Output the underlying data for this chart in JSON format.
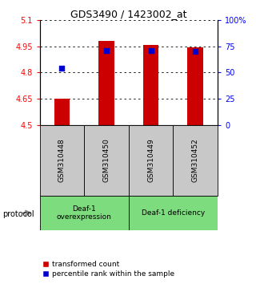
{
  "title": "GDS3490 / 1423002_at",
  "categories": [
    "GSM310448",
    "GSM310450",
    "GSM310449",
    "GSM310452"
  ],
  "bar_bottom": 4.5,
  "bar_tops": [
    4.648,
    4.982,
    4.955,
    4.942
  ],
  "blue_marker_values": [
    4.825,
    4.925,
    4.925,
    4.922
  ],
  "ylim_left": [
    4.5,
    5.1
  ],
  "ylim_right": [
    0,
    100
  ],
  "yticks_left": [
    4.5,
    4.65,
    4.8,
    4.95,
    5.1
  ],
  "yticks_right": [
    0,
    25,
    50,
    75,
    100
  ],
  "ytick_labels_left": [
    "4.5",
    "4.65",
    "4.8",
    "4.95",
    "5.1"
  ],
  "ytick_labels_right": [
    "0",
    "25",
    "50",
    "75",
    "100%"
  ],
  "bar_color": "#cc0000",
  "marker_color": "#0000cc",
  "group1_label": "Deaf-1\noverexpression",
  "group2_label": "Deaf-1 deficiency",
  "group_color": "#7ddc7d",
  "protocol_label": "protocol",
  "legend_red_label": "transformed count",
  "legend_blue_label": "percentile rank within the sample",
  "bar_width": 0.35,
  "title_fontsize": 9,
  "tick_fontsize": 7,
  "gray_label_color": "#c8c8c8"
}
